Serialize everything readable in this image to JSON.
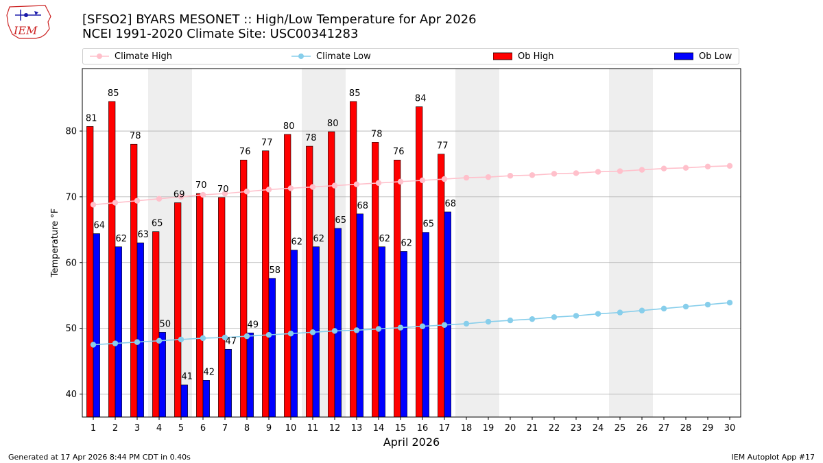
{
  "header": {
    "title_line1": "[SFSO2] BYARS MESONET :: High/Low Temperature for Apr 2026",
    "title_line2": "NCEI 1991-2020 Climate Site: USC00341283",
    "logo_text": "IEM"
  },
  "footer": {
    "generated": "Generated at 17 Apr 2026 8:44 PM CDT in 0.40s",
    "app": "IEM Autoplot App #17"
  },
  "legend": {
    "climate_high": "Climate High",
    "climate_low": "Climate Low",
    "ob_high": "Ob High",
    "ob_low": "Ob Low"
  },
  "colors": {
    "ob_high": "#ff0000",
    "ob_low": "#0000ff",
    "climate_high": "#ffc0cb",
    "climate_low": "#87ceeb",
    "weekend_shade": "#eeeeee",
    "grid": "#b0b0b0"
  },
  "chart_data": {
    "type": "bar",
    "title": "[SFSO2] BYARS MESONET :: High/Low Temperature for Apr 2026",
    "subtitle": "NCEI 1991-2020 Climate Site: USC00341283",
    "xlabel": "April 2026",
    "ylabel": "Temperature °F",
    "ylim": [
      36.5,
      89.5
    ],
    "yticks": [
      40,
      50,
      60,
      70,
      80
    ],
    "grid": "horizontal",
    "legend_position": "top",
    "days": [
      1,
      2,
      3,
      4,
      5,
      6,
      7,
      8,
      9,
      10,
      11,
      12,
      13,
      14,
      15,
      16,
      17,
      18,
      19,
      20,
      21,
      22,
      23,
      24,
      25,
      26,
      27,
      28,
      29,
      30
    ],
    "shaded_days": [
      4,
      5,
      11,
      12,
      18,
      19,
      25,
      26
    ],
    "ob_high": [
      81,
      85,
      78,
      65,
      69,
      70,
      70,
      76,
      77,
      80,
      78,
      80,
      85,
      78,
      76,
      84,
      77
    ],
    "ob_low": [
      64,
      62,
      63,
      50,
      41,
      42,
      47,
      49,
      58,
      62,
      62,
      65,
      68,
      62,
      62,
      65,
      68
    ],
    "ob_high_raw": [
      80.7,
      84.5,
      78.0,
      64.7,
      69.1,
      70.5,
      69.9,
      75.6,
      77.0,
      79.5,
      77.7,
      79.9,
      84.5,
      78.3,
      75.6,
      83.7,
      76.5
    ],
    "ob_low_raw": [
      64.4,
      62.4,
      63.0,
      49.4,
      41.4,
      42.1,
      46.8,
      49.3,
      57.6,
      61.9,
      62.4,
      65.2,
      67.4,
      62.4,
      61.7,
      64.6,
      67.7
    ],
    "climate_high": [
      68.8,
      69.1,
      69.4,
      69.7,
      70.0,
      70.3,
      70.5,
      70.8,
      71.1,
      71.3,
      71.5,
      71.7,
      71.9,
      72.1,
      72.3,
      72.5,
      72.7,
      72.9,
      73.0,
      73.2,
      73.3,
      73.5,
      73.6,
      73.8,
      73.9,
      74.1,
      74.3,
      74.4,
      74.6,
      74.7
    ],
    "climate_low": [
      47.5,
      47.7,
      47.9,
      48.1,
      48.3,
      48.5,
      48.6,
      48.8,
      49.0,
      49.2,
      49.4,
      49.6,
      49.7,
      49.9,
      50.1,
      50.3,
      50.5,
      50.7,
      51.0,
      51.2,
      51.4,
      51.7,
      51.9,
      52.2,
      52.4,
      52.7,
      53.0,
      53.3,
      53.6,
      53.9
    ]
  }
}
